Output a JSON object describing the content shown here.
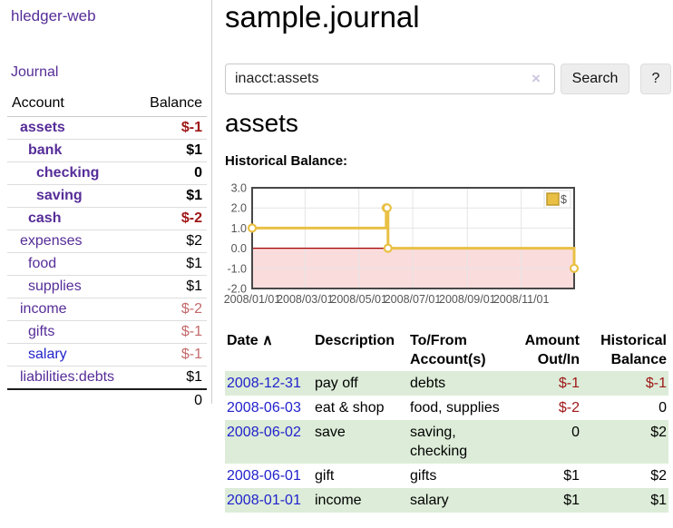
{
  "colors": {
    "purple_link": "#562d98",
    "blue_link": "#2222cc",
    "negative_strong": "#9e1616",
    "negative_soft": "#c4696b",
    "row_green": "#dcecd8",
    "chart_yellow": "#e9c044",
    "chart_negative_fill": "#fbdcdc",
    "chart_zero_line": "#a40000"
  },
  "sidebar": {
    "brand": "hledger-web",
    "nav_journal": "Journal",
    "accounts_table": {
      "headers": [
        "Account",
        "Balance"
      ],
      "rows": [
        {
          "name": "assets",
          "depth": 1,
          "bold": true,
          "balance": "$-1",
          "balance_style": "neg-strong"
        },
        {
          "name": "bank",
          "depth": 2,
          "bold": true,
          "balance": "$1",
          "balance_style": "pos"
        },
        {
          "name": "checking",
          "depth": 3,
          "bold": true,
          "balance": "0",
          "balance_style": "pos"
        },
        {
          "name": "saving",
          "depth": 3,
          "bold": true,
          "balance": "$1",
          "balance_style": "pos"
        },
        {
          "name": "cash",
          "depth": 2,
          "bold": true,
          "balance": "$-2",
          "balance_style": "neg-strong"
        },
        {
          "name": "expenses",
          "depth": 1,
          "bold": false,
          "balance": "$2",
          "balance_style": "pos"
        },
        {
          "name": "food",
          "depth": 2,
          "bold": false,
          "balance": "$1",
          "balance_style": "pos"
        },
        {
          "name": "supplies",
          "depth": 2,
          "bold": false,
          "balance": "$1",
          "balance_style": "pos"
        },
        {
          "name": "income",
          "depth": 1,
          "bold": false,
          "balance": "$-2",
          "balance_style": "neg-soft"
        },
        {
          "name": "gifts",
          "depth": 2,
          "bold": false,
          "balance": "$-1",
          "balance_style": "neg-soft"
        },
        {
          "name": "salary",
          "depth": 2,
          "bold": false,
          "balance": "$-1",
          "balance_style": "neg-soft",
          "link_color": "blue"
        },
        {
          "name": "liabilities:debts",
          "depth": 1,
          "bold": false,
          "balance": "$1",
          "balance_style": "pos"
        }
      ],
      "total": "0"
    }
  },
  "main": {
    "title": "sample.journal",
    "search": {
      "value": "inacct:assets",
      "clear_icon": "×",
      "search_label": "Search",
      "help_label": "?"
    },
    "heading": "assets",
    "chart_label": "Historical Balance:",
    "register": {
      "headers": [
        "Date",
        "Description",
        "To/From Account(s)",
        "Amount Out/In",
        "Historical Balance"
      ],
      "sort_arrow": "∧",
      "rows": [
        {
          "date": "2008-12-31",
          "description": "pay off",
          "accounts": "debts",
          "amount": "$-1",
          "amount_neg": true,
          "balance": "$-1",
          "balance_neg": true
        },
        {
          "date": "2008-06-03",
          "description": "eat & shop",
          "accounts": "food, supplies",
          "amount": "$-2",
          "amount_neg": true,
          "balance": "0",
          "balance_neg": false
        },
        {
          "date": "2008-06-02",
          "description": "save",
          "accounts": "saving, checking",
          "amount": "0",
          "amount_neg": false,
          "balance": "$2",
          "balance_neg": false
        },
        {
          "date": "2008-06-01",
          "description": "gift",
          "accounts": "gifts",
          "amount": "$1",
          "amount_neg": false,
          "balance": "$2",
          "balance_neg": false
        },
        {
          "date": "2008-01-01",
          "description": "income",
          "accounts": "salary",
          "amount": "$1",
          "amount_neg": false,
          "balance": "$1",
          "balance_neg": false
        }
      ]
    }
  },
  "chart_data": {
    "type": "line",
    "title": "Historical Balance:",
    "steps": true,
    "series": [
      {
        "name": "$",
        "color": "#e9c044",
        "points": [
          [
            "2008-01-01",
            1
          ],
          [
            "2008-06-01",
            2
          ],
          [
            "2008-06-02",
            2
          ],
          [
            "2008-06-03",
            0
          ],
          [
            "2008-12-31",
            -1
          ]
        ]
      }
    ],
    "ylim": [
      -2,
      3
    ],
    "yticks": [
      "3.0",
      "2.0",
      "1.0",
      "0.0",
      "-1.0",
      "-2.0"
    ],
    "xticks": [
      "2008/01/01",
      "2008/03/01",
      "2008/05/01",
      "2008/07/01",
      "2008/09/01",
      "2008/11/01"
    ],
    "legend_position": "top-right",
    "grid": true,
    "negative_fill": "#fbdcdc",
    "zero_line_color": "#a40000",
    "border_color": "#474747"
  }
}
